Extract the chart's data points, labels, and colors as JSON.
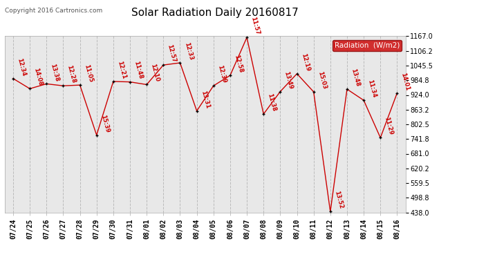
{
  "title": "Solar Radiation Daily 20160817",
  "copyright": "Copyright 2016 Cartronics.com",
  "legend_label": "Radiation  (W/m2)",
  "legend_bg": "#cc0000",
  "legend_fg": "#ffffff",
  "ylim": [
    438.0,
    1167.0
  ],
  "yticks": [
    438.0,
    498.8,
    559.5,
    620.2,
    681.0,
    741.8,
    802.5,
    863.2,
    924.0,
    984.8,
    1045.5,
    1106.2,
    1167.0
  ],
  "dates": [
    "07/24",
    "07/25",
    "07/26",
    "07/27",
    "07/28",
    "07/29",
    "07/30",
    "07/31",
    "08/01",
    "08/02",
    "08/03",
    "08/04",
    "08/05",
    "08/06",
    "08/07",
    "08/08",
    "08/09",
    "08/10",
    "08/11",
    "08/12",
    "08/13",
    "08/14",
    "08/15",
    "08/16"
  ],
  "values": [
    992,
    950,
    970,
    962,
    965,
    758,
    980,
    978,
    967,
    1048,
    1057,
    858,
    962,
    1005,
    1162,
    845,
    938,
    1012,
    937,
    441,
    948,
    902,
    747,
    932
  ],
  "time_labels": [
    "12:34",
    "14:08",
    "13:38",
    "12:28",
    "11:05",
    "15:39",
    "12:21",
    "11:48",
    "12:10",
    "12:57",
    "12:33",
    "13:31",
    "12:39",
    "12:58",
    "11:57",
    "11:38",
    "13:49",
    "12:19",
    "15:03",
    "13:52",
    "13:48",
    "11:34",
    "11:29",
    "14:01"
  ],
  "line_color": "#cc0000",
  "marker_color": "#000000",
  "bg_color": "#ffffff",
  "plot_bg": "#e8e8e8",
  "grid_color": "#bbbbbb",
  "title_fontsize": 11,
  "annotation_fontsize": 6,
  "tick_fontsize": 7,
  "copyright_fontsize": 6.5,
  "legend_fontsize": 7.5
}
